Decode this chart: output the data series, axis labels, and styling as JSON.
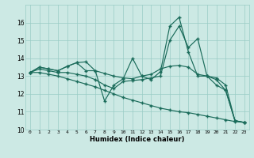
{
  "xlabel": "Humidex (Indice chaleur)",
  "xlim": [
    -0.5,
    23.5
  ],
  "ylim": [
    10,
    17
  ],
  "yticks": [
    10,
    11,
    12,
    13,
    14,
    15,
    16
  ],
  "xticks": [
    0,
    1,
    2,
    3,
    4,
    5,
    6,
    7,
    8,
    9,
    10,
    11,
    12,
    13,
    14,
    15,
    16,
    17,
    18,
    19,
    20,
    21,
    22,
    23
  ],
  "bg_color": "#cce9e4",
  "line_color": "#1a6b5a",
  "grid_color": "#99ccc5",
  "line1_x": [
    0,
    1,
    2,
    3,
    4,
    5,
    6,
    7,
    8,
    9,
    10,
    11,
    12,
    13,
    14,
    15,
    16,
    17,
    18,
    19,
    20,
    21,
    22,
    23
  ],
  "line1_y": [
    13.2,
    13.5,
    13.4,
    13.3,
    13.55,
    13.75,
    13.8,
    13.3,
    11.6,
    12.5,
    12.85,
    14.0,
    13.0,
    12.8,
    13.25,
    15.8,
    16.3,
    14.35,
    13.0,
    13.0,
    12.8,
    12.2,
    10.5,
    10.4
  ],
  "line2_x": [
    0,
    1,
    2,
    3,
    4,
    5,
    6,
    7,
    8,
    9,
    10,
    11,
    12,
    13,
    14,
    15,
    16,
    17,
    18,
    19,
    20,
    21,
    22,
    23
  ],
  "line2_y": [
    13.2,
    13.5,
    13.4,
    13.3,
    13.55,
    13.75,
    13.3,
    13.3,
    13.15,
    13.0,
    12.9,
    12.85,
    13.0,
    13.1,
    13.4,
    13.55,
    13.6,
    13.5,
    13.1,
    13.0,
    12.9,
    12.5,
    10.5,
    10.4
  ],
  "line3_x": [
    0,
    1,
    2,
    3,
    4,
    5,
    6,
    7,
    8,
    9,
    10,
    11,
    12,
    13,
    14,
    15,
    16,
    17,
    18,
    19,
    20,
    21,
    22,
    23
  ],
  "line3_y": [
    13.2,
    13.4,
    13.3,
    13.2,
    13.2,
    13.1,
    13.0,
    12.8,
    12.5,
    12.3,
    12.7,
    12.75,
    12.8,
    12.9,
    13.0,
    15.0,
    15.8,
    14.6,
    15.1,
    13.0,
    12.5,
    12.2,
    10.5,
    10.4
  ],
  "line4_x": [
    0,
    1,
    2,
    3,
    4,
    5,
    6,
    7,
    8,
    9,
    10,
    11,
    12,
    13,
    14,
    15,
    16,
    17,
    18,
    19,
    20,
    21,
    22,
    23
  ],
  "line4_y": [
    13.2,
    13.2,
    13.1,
    13.0,
    12.85,
    12.7,
    12.55,
    12.4,
    12.2,
    12.0,
    11.8,
    11.65,
    11.5,
    11.35,
    11.2,
    11.1,
    11.0,
    10.95,
    10.85,
    10.75,
    10.65,
    10.55,
    10.45,
    10.4
  ]
}
